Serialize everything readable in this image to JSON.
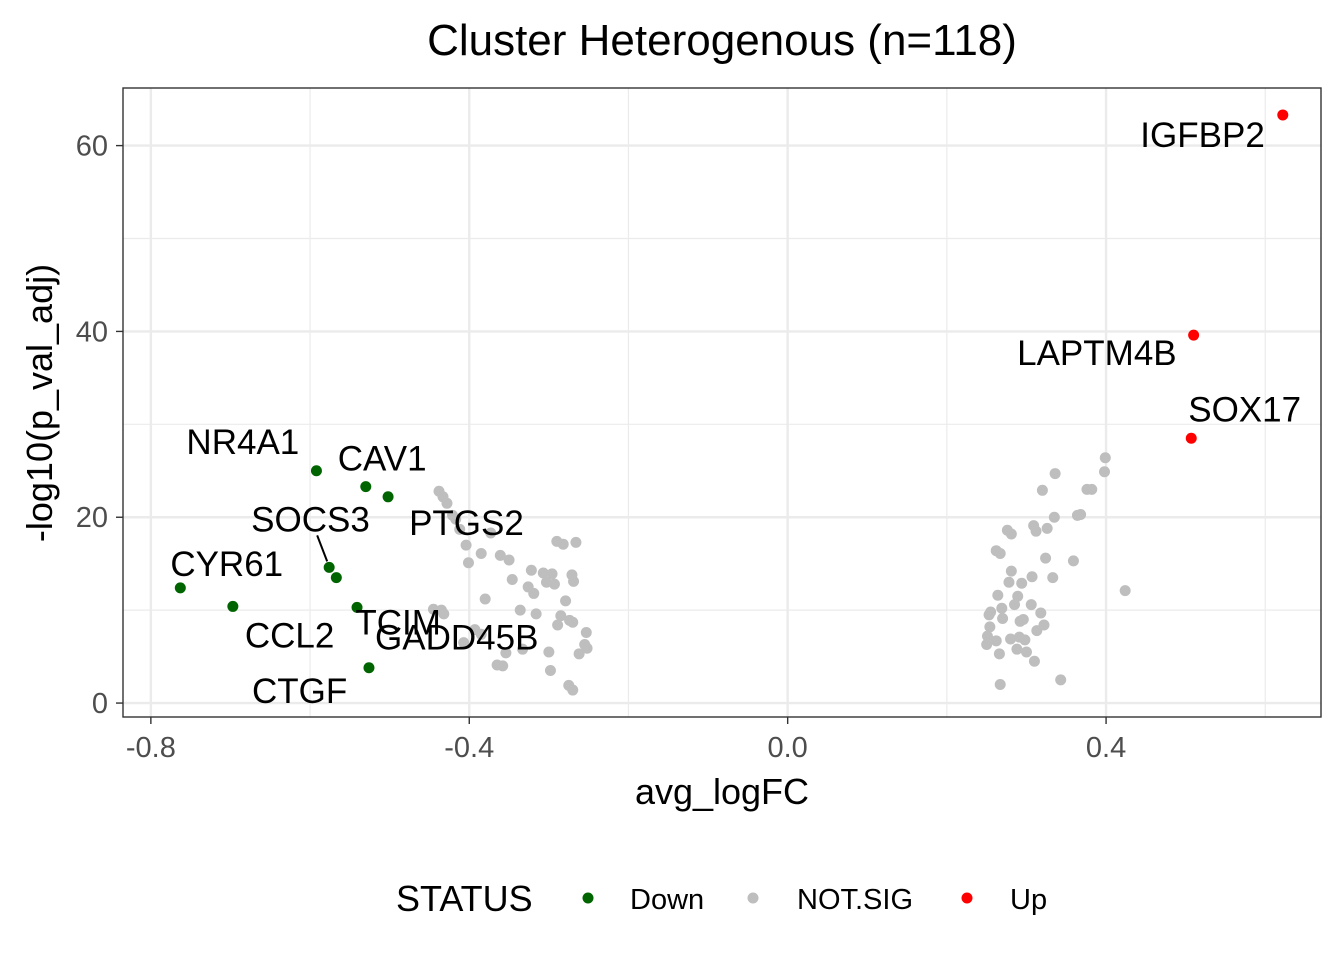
{
  "chart_data": {
    "type": "scatter",
    "title": "Cluster Heterogenous (n=118)",
    "xlabel": "avg_logFC",
    "ylabel": "-log10(p_val_adj)",
    "xlim": [
      -0.835,
      0.67
    ],
    "ylim": [
      -1.5,
      66.2
    ],
    "x_ticks": [
      -0.8,
      -0.4,
      0.0,
      0.4
    ],
    "x_tick_labels": [
      "-0.8",
      "-0.4",
      "0.0",
      "0.4"
    ],
    "y_ticks": [
      0,
      20,
      40,
      60
    ],
    "y_tick_labels": [
      "0",
      "20",
      "40",
      "60"
    ],
    "grid": true,
    "legend": {
      "title": "STATUS",
      "position": "bottom",
      "entries": [
        {
          "label": "Down",
          "color": "#006400"
        },
        {
          "label": "NOT.SIG",
          "color": "#bebebe"
        },
        {
          "label": "Up",
          "color": "#ff0000"
        }
      ]
    },
    "series": [
      {
        "name": "Down",
        "color": "#006400",
        "points": [
          {
            "x": -0.763,
            "y": 12.4,
            "label": "CYR61"
          },
          {
            "x": -0.697,
            "y": 10.4,
            "label": "CCL2"
          },
          {
            "x": -0.592,
            "y": 25.0,
            "label": "NR4A1"
          },
          {
            "x": -0.576,
            "y": 14.6,
            "label": "SOCS3"
          },
          {
            "x": -0.567,
            "y": 13.5,
            "label": "TCIM"
          },
          {
            "x": -0.541,
            "y": 10.3,
            "label": "GADD45B"
          },
          {
            "x": -0.53,
            "y": 23.3,
            "label": "CAV1"
          },
          {
            "x": -0.526,
            "y": 3.8,
            "label": "CTGF"
          },
          {
            "x": -0.502,
            "y": 22.2,
            "label": "PTGS2"
          }
        ]
      },
      {
        "name": "NOT.SIG",
        "color": "#bebebe",
        "points": [
          {
            "x": -0.438,
            "y": 22.8
          },
          {
            "x": -0.433,
            "y": 22.2
          },
          {
            "x": -0.428,
            "y": 21.5
          },
          {
            "x": -0.421,
            "y": 20.2
          },
          {
            "x": -0.417,
            "y": 19.8
          },
          {
            "x": -0.412,
            "y": 18.7
          },
          {
            "x": -0.404,
            "y": 17.0
          },
          {
            "x": -0.401,
            "y": 15.1
          },
          {
            "x": -0.385,
            "y": 16.1
          },
          {
            "x": -0.38,
            "y": 11.2
          },
          {
            "x": -0.373,
            "y": 18.3
          },
          {
            "x": -0.361,
            "y": 15.9
          },
          {
            "x": -0.35,
            "y": 15.4
          },
          {
            "x": -0.346,
            "y": 13.3
          },
          {
            "x": -0.336,
            "y": 10.0
          },
          {
            "x": -0.326,
            "y": 12.5
          },
          {
            "x": -0.322,
            "y": 14.3
          },
          {
            "x": -0.319,
            "y": 11.8
          },
          {
            "x": -0.316,
            "y": 9.6
          },
          {
            "x": -0.303,
            "y": 13.0
          },
          {
            "x": -0.296,
            "y": 13.9
          },
          {
            "x": -0.293,
            "y": 12.8
          },
          {
            "x": -0.29,
            "y": 17.4
          },
          {
            "x": -0.282,
            "y": 17.1
          },
          {
            "x": -0.279,
            "y": 11.0
          },
          {
            "x": -0.274,
            "y": 8.9
          },
          {
            "x": -0.271,
            "y": 13.8
          },
          {
            "x": -0.269,
            "y": 13.1
          },
          {
            "x": -0.266,
            "y": 17.3
          },
          {
            "x": -0.262,
            "y": 5.3
          },
          {
            "x": -0.255,
            "y": 6.3
          },
          {
            "x": -0.253,
            "y": 7.6
          },
          {
            "x": -0.252,
            "y": 5.9
          },
          {
            "x": -0.27,
            "y": 8.7
          },
          {
            "x": -0.3,
            "y": 5.5
          },
          {
            "x": -0.298,
            "y": 3.5
          },
          {
            "x": -0.275,
            "y": 1.9
          },
          {
            "x": -0.27,
            "y": 1.4
          },
          {
            "x": -0.333,
            "y": 5.8
          },
          {
            "x": -0.354,
            "y": 5.4
          },
          {
            "x": -0.365,
            "y": 4.1
          },
          {
            "x": -0.358,
            "y": 4.0
          },
          {
            "x": -0.385,
            "y": 7.4
          },
          {
            "x": -0.393,
            "y": 7.9
          },
          {
            "x": -0.407,
            "y": 6.5
          },
          {
            "x": -0.435,
            "y": 10.0
          },
          {
            "x": -0.445,
            "y": 10.1
          },
          {
            "x": -0.432,
            "y": 9.6
          },
          {
            "x": -0.289,
            "y": 8.4
          },
          {
            "x": -0.285,
            "y": 9.4
          },
          {
            "x": -0.307,
            "y": 14.0
          },
          {
            "x": 0.262,
            "y": 16.4
          },
          {
            "x": 0.267,
            "y": 16.1
          },
          {
            "x": 0.264,
            "y": 11.6
          },
          {
            "x": 0.253,
            "y": 9.5
          },
          {
            "x": 0.254,
            "y": 8.2
          },
          {
            "x": 0.251,
            "y": 7.2
          },
          {
            "x": 0.25,
            "y": 6.3
          },
          {
            "x": 0.262,
            "y": 6.7
          },
          {
            "x": 0.27,
            "y": 9.1
          },
          {
            "x": 0.276,
            "y": 18.6
          },
          {
            "x": 0.281,
            "y": 18.2
          },
          {
            "x": 0.281,
            "y": 14.2
          },
          {
            "x": 0.278,
            "y": 13.0
          },
          {
            "x": 0.285,
            "y": 10.6
          },
          {
            "x": 0.289,
            "y": 11.5
          },
          {
            "x": 0.292,
            "y": 8.8
          },
          {
            "x": 0.291,
            "y": 7.1
          },
          {
            "x": 0.288,
            "y": 5.8
          },
          {
            "x": 0.294,
            "y": 12.9
          },
          {
            "x": 0.3,
            "y": 5.5
          },
          {
            "x": 0.307,
            "y": 13.6
          },
          {
            "x": 0.309,
            "y": 19.1
          },
          {
            "x": 0.312,
            "y": 18.5
          },
          {
            "x": 0.306,
            "y": 10.6
          },
          {
            "x": 0.313,
            "y": 7.8
          },
          {
            "x": 0.31,
            "y": 4.5
          },
          {
            "x": 0.318,
            "y": 9.7
          },
          {
            "x": 0.322,
            "y": 8.4
          },
          {
            "x": 0.324,
            "y": 15.6
          },
          {
            "x": 0.326,
            "y": 18.8
          },
          {
            "x": 0.32,
            "y": 22.9
          },
          {
            "x": 0.335,
            "y": 20.0
          },
          {
            "x": 0.333,
            "y": 13.5
          },
          {
            "x": 0.336,
            "y": 24.7
          },
          {
            "x": 0.343,
            "y": 2.5
          },
          {
            "x": 0.359,
            "y": 15.3
          },
          {
            "x": 0.364,
            "y": 20.2
          },
          {
            "x": 0.368,
            "y": 20.3
          },
          {
            "x": 0.376,
            "y": 23.0
          },
          {
            "x": 0.382,
            "y": 23.0
          },
          {
            "x": 0.398,
            "y": 24.9
          },
          {
            "x": 0.399,
            "y": 26.4
          },
          {
            "x": 0.424,
            "y": 12.1
          },
          {
            "x": 0.267,
            "y": 2.0
          },
          {
            "x": 0.266,
            "y": 5.3
          },
          {
            "x": 0.28,
            "y": 6.9
          },
          {
            "x": 0.255,
            "y": 9.8
          },
          {
            "x": 0.269,
            "y": 10.2
          },
          {
            "x": 0.298,
            "y": 6.8
          },
          {
            "x": 0.296,
            "y": 9.0
          }
        ]
      },
      {
        "name": "Up",
        "color": "#ff0000",
        "points": [
          {
            "x": 0.507,
            "y": 28.5,
            "label": "SOX17"
          },
          {
            "x": 0.51,
            "y": 39.6,
            "label": "LAPTM4B"
          },
          {
            "x": 0.622,
            "y": 63.3,
            "label": "IGFBP2"
          }
        ]
      }
    ]
  }
}
